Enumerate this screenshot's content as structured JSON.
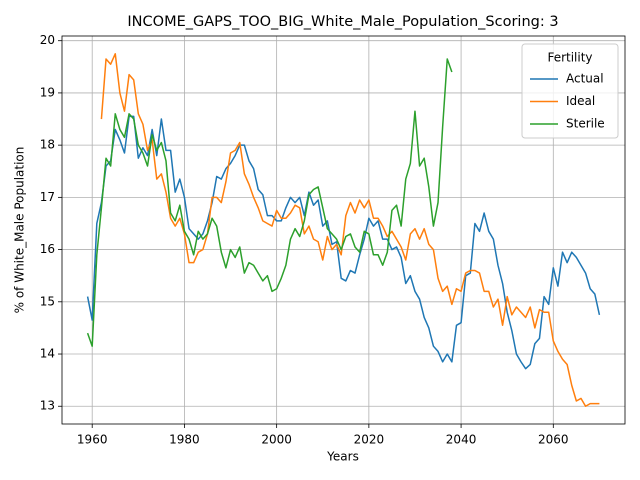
{
  "chart_data": {
    "type": "line",
    "title": "INCOME_GAPS_TOO_BIG_White_Male_Population_Scoring: 3",
    "x_label": "Years",
    "y_label": "% of White_Male Population",
    "legend_title": "Fertility",
    "legend_position": "upper right",
    "grid": true,
    "xlim": [
      1953.45,
      2075.55
    ],
    "xticks": [
      1960,
      1980,
      2000,
      2020,
      2040,
      2060
    ],
    "ylim": [
      12.66,
      20.09
    ],
    "yticks": [
      13,
      14,
      15,
      16,
      17,
      18,
      19,
      20
    ],
    "x": [
      1959,
      1960,
      1961,
      1962,
      1963,
      1964,
      1965,
      1966,
      1967,
      1968,
      1969,
      1970,
      1971,
      1972,
      1973,
      1974,
      1975,
      1976,
      1977,
      1978,
      1979,
      1980,
      1981,
      1982,
      1983,
      1984,
      1985,
      1986,
      1987,
      1988,
      1989,
      1990,
      1991,
      1992,
      1993,
      1994,
      1995,
      1996,
      1997,
      1998,
      1999,
      2000,
      2001,
      2002,
      2003,
      2004,
      2005,
      2006,
      2007,
      2008,
      2009,
      2010,
      2011,
      2012,
      2013,
      2014,
      2015,
      2016,
      2017,
      2018,
      2019,
      2020,
      2021,
      2022,
      2023,
      2024,
      2025,
      2026,
      2027,
      2028,
      2029,
      2030,
      2031,
      2032,
      2033,
      2034,
      2035,
      2036,
      2037,
      2038,
      2039,
      2040,
      2041,
      2042,
      2043,
      2044,
      2045,
      2046,
      2047,
      2048,
      2049,
      2050,
      2051,
      2052,
      2053,
      2054,
      2055,
      2056,
      2057,
      2058,
      2059,
      2060,
      2061,
      2062,
      2063,
      2064,
      2065,
      2066,
      2067,
      2068,
      2069,
      2070
    ],
    "series": [
      {
        "name": "Actual",
        "color": "#1f77b4",
        "values": [
          15.1,
          14.65,
          16.5,
          16.9,
          17.6,
          17.7,
          18.3,
          18.1,
          17.85,
          18.55,
          18.55,
          17.75,
          17.95,
          17.8,
          18.3,
          17.8,
          18.5,
          17.9,
          17.9,
          17.1,
          17.35,
          17.0,
          16.4,
          16.3,
          16.2,
          16.3,
          16.55,
          16.9,
          17.4,
          17.35,
          17.55,
          17.65,
          17.8,
          18.0,
          18.0,
          17.7,
          17.55,
          17.15,
          17.05,
          16.65,
          16.65,
          16.55,
          16.55,
          16.8,
          17.0,
          16.9,
          17.0,
          16.65,
          17.1,
          16.85,
          16.95,
          16.45,
          16.55,
          16.1,
          16.15,
          15.45,
          15.4,
          15.6,
          15.55,
          15.9,
          16.2,
          16.6,
          16.45,
          16.55,
          16.2,
          16.2,
          16.0,
          16.05,
          15.85,
          15.35,
          15.5,
          15.2,
          15.05,
          14.7,
          14.5,
          14.15,
          14.05,
          13.85,
          14.0,
          13.85,
          14.55,
          14.6,
          15.5,
          15.55,
          16.5,
          16.35,
          16.7,
          16.35,
          16.2,
          15.7,
          15.35,
          14.8,
          14.45,
          14.0,
          13.85,
          13.72,
          13.8,
          14.2,
          14.3,
          15.1,
          14.95,
          15.65,
          15.3,
          15.95,
          15.75,
          15.95,
          15.85,
          15.7,
          15.55,
          15.25,
          15.15,
          14.75
        ]
      },
      {
        "name": "Ideal",
        "color": "#ff7f0e",
        "values": [
          null,
          null,
          null,
          18.5,
          19.65,
          19.55,
          19.75,
          19.0,
          18.65,
          19.35,
          19.25,
          18.6,
          18.4,
          17.9,
          18.1,
          17.35,
          17.45,
          17.1,
          16.6,
          16.45,
          16.6,
          16.3,
          15.75,
          15.75,
          15.95,
          16.0,
          16.3,
          17.0,
          17.0,
          16.9,
          17.3,
          17.85,
          17.9,
          18.05,
          17.45,
          17.25,
          17.0,
          16.8,
          16.55,
          16.5,
          16.45,
          16.75,
          16.6,
          16.6,
          16.7,
          16.85,
          16.8,
          16.3,
          16.45,
          16.2,
          16.15,
          15.8,
          16.25,
          16.0,
          16.1,
          15.9,
          16.65,
          16.9,
          16.7,
          16.95,
          16.8,
          16.95,
          16.6,
          16.6,
          16.45,
          16.25,
          16.35,
          16.2,
          16.05,
          15.8,
          16.3,
          16.4,
          16.2,
          16.4,
          16.1,
          16.0,
          15.45,
          15.2,
          15.3,
          14.95,
          15.25,
          15.2,
          15.55,
          15.6,
          15.6,
          15.55,
          15.2,
          15.2,
          14.9,
          15.05,
          14.55,
          15.1,
          14.75,
          14.9,
          14.8,
          14.7,
          14.9,
          14.5,
          14.85,
          14.8,
          14.8,
          14.25,
          14.05,
          13.9,
          13.8,
          13.4,
          13.1,
          13.15,
          13.0,
          13.05,
          13.05,
          13.05
        ]
      },
      {
        "name": "Sterile",
        "color": "#2ca02c",
        "values": [
          14.4,
          14.15,
          15.9,
          16.8,
          17.75,
          17.6,
          18.6,
          18.3,
          18.15,
          18.6,
          18.5,
          18.0,
          17.85,
          17.6,
          18.2,
          17.9,
          18.05,
          17.7,
          16.7,
          16.55,
          16.85,
          16.35,
          16.2,
          15.9,
          16.35,
          16.2,
          16.3,
          16.6,
          16.45,
          15.95,
          15.65,
          16.0,
          15.85,
          16.05,
          15.55,
          15.75,
          15.7,
          15.55,
          15.4,
          15.5,
          15.2,
          15.25,
          15.45,
          15.7,
          16.2,
          16.4,
          16.25,
          16.55,
          17.05,
          17.15,
          17.2,
          16.8,
          16.4,
          16.3,
          16.2,
          16.0,
          16.25,
          16.3,
          16.05,
          15.95,
          16.35,
          16.3,
          15.9,
          15.9,
          15.7,
          15.95,
          16.75,
          16.85,
          16.45,
          17.35,
          17.65,
          18.65,
          17.6,
          17.75,
          17.2,
          16.45,
          16.9,
          18.35,
          19.65,
          19.4,
          null,
          null,
          null,
          null,
          null,
          null,
          null,
          null,
          null,
          null,
          null,
          null,
          null,
          null,
          null,
          null,
          null,
          null,
          null,
          null,
          null,
          null,
          null,
          null,
          null,
          null,
          null,
          null,
          null,
          null,
          null,
          null
        ]
      }
    ]
  }
}
